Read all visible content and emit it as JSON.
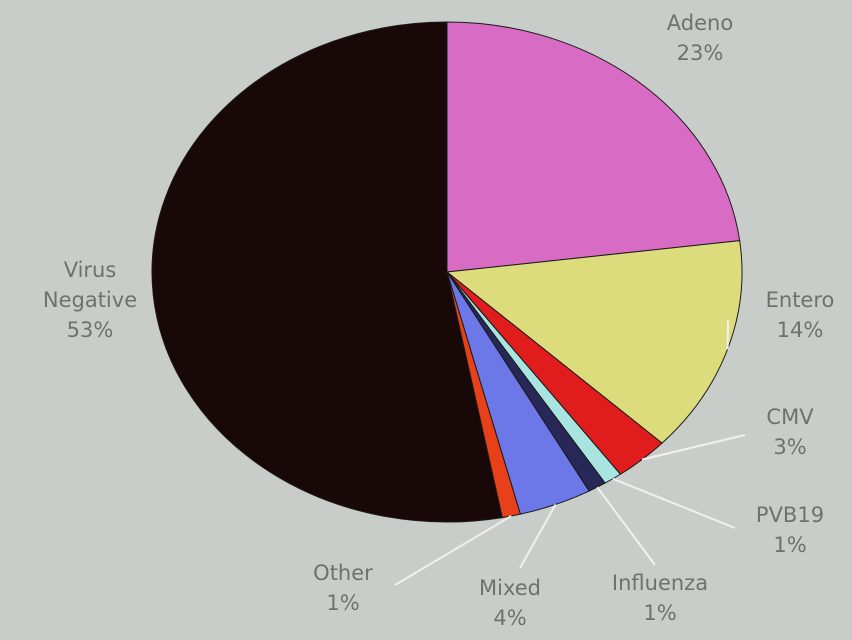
{
  "chart_data": {
    "type": "pie",
    "categories": [
      "Adeno",
      "Entero",
      "CMV",
      "PVB19",
      "Influenza",
      "Mixed",
      "Other",
      "Virus Negative"
    ],
    "values": [
      23,
      14,
      3,
      1,
      1,
      4,
      1,
      53
    ],
    "value_labels": [
      "23%",
      "14%",
      "3%",
      "1%",
      "1%",
      "4%",
      "1%",
      "53%"
    ],
    "colors": [
      "#d86cc4",
      "#dcdc7c",
      "#e01c1c",
      "#a8e4e0",
      "#282858",
      "#6c78e8",
      "#e84018",
      "#180808"
    ]
  }
}
